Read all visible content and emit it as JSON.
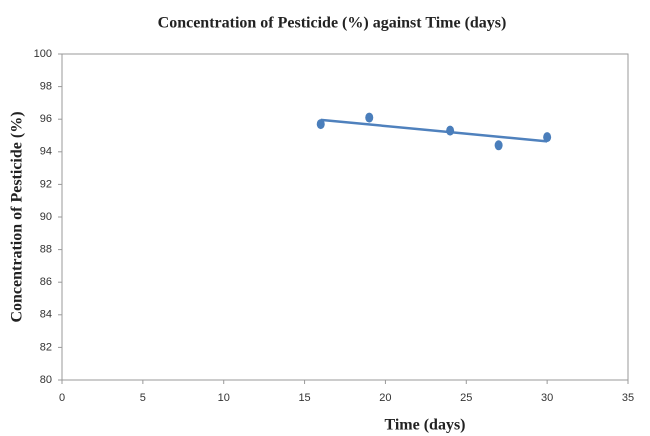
{
  "chart_data": {
    "type": "scatter",
    "title": "Concentration of Pesticide (%) against Time (days)",
    "x_label": "Time (days)",
    "y_label": "Concentration of Pesticide (%)",
    "series": [
      {
        "color": "#4a7ebb",
        "x": [
          16,
          19,
          24,
          27,
          30
        ],
        "values": [
          95.7,
          96.1,
          95.3,
          94.4,
          94.9
        ]
      }
    ],
    "trendline": {
      "color": "#4f81bd",
      "x": [
        16,
        30
      ],
      "values": [
        95.96,
        94.64
      ]
    },
    "xlim": [
      0,
      35
    ],
    "xticks": [
      0,
      5,
      10,
      15,
      20,
      25,
      30,
      35
    ],
    "ylim": [
      80,
      100
    ],
    "yticks": [
      80,
      82,
      84,
      86,
      88,
      90,
      92,
      94,
      96,
      98,
      100
    ],
    "grid": false
  }
}
